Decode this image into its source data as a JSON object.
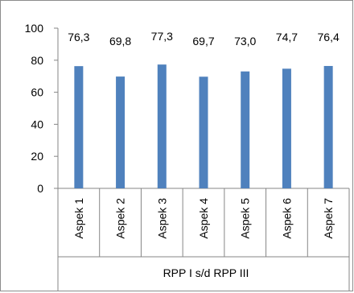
{
  "chart_data": {
    "type": "bar",
    "title": "",
    "xlabel": "",
    "ylabel": "",
    "group_label": "RPP I s/d RPP III",
    "categories": [
      "Aspek 1",
      "Aspek 2",
      "Aspek 3",
      "Aspek 4",
      "Aspek 5",
      "Aspek 6",
      "Aspek 7"
    ],
    "values": [
      76.3,
      69.8,
      77.3,
      69.7,
      73.0,
      74.7,
      76.4
    ],
    "value_labels": [
      "76,3",
      "69,8",
      "77,3",
      "69,7",
      "73,0",
      "74,7",
      "76,4"
    ],
    "ylim": [
      0,
      100
    ],
    "yticks": [
      0,
      20,
      40,
      60,
      80,
      100
    ],
    "grid": false,
    "legend": false,
    "bar_color": "#4F81BD"
  }
}
